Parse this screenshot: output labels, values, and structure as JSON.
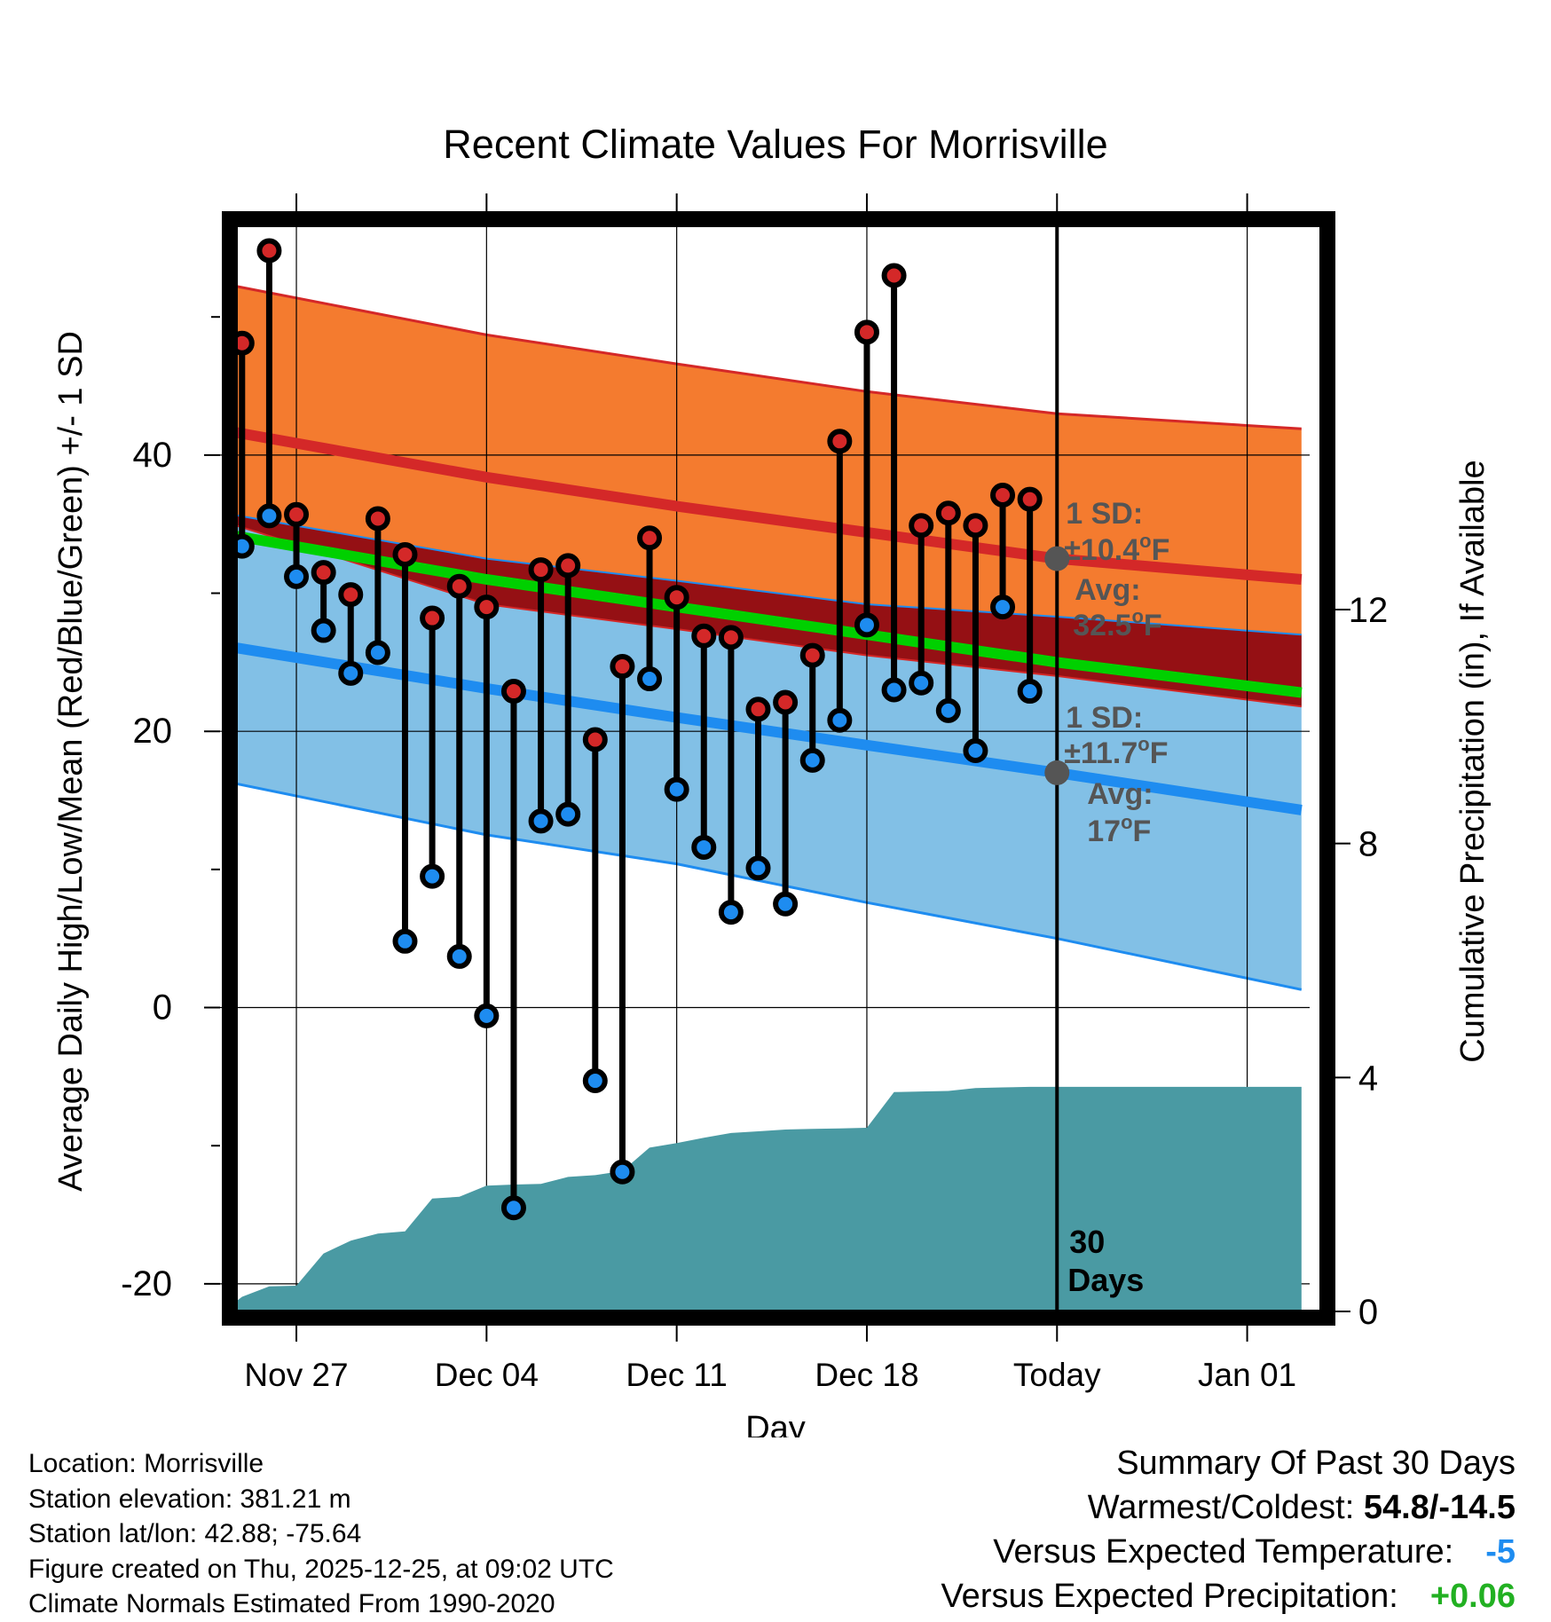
{
  "title": "Recent Climate Values For Morrisville",
  "colors": {
    "high_band": "#f47b2f",
    "high_line": "#d42828",
    "low_band": "#82c0e6",
    "low_line": "#1e8cf0",
    "overlap": "#951014",
    "mean_line": "#00d000",
    "precip": "#4a9aa3",
    "high_dot": "#d42828",
    "low_dot": "#1e8cf0",
    "annot": "#555555",
    "warm_cold_val": "#000000",
    "temp_val": "#1e8cf0",
    "precip_val": "#22b022"
  },
  "chart_data": {
    "type": "line",
    "title": "Recent Climate Values For Morrisville",
    "xlabel": "Day",
    "ylabel": "Average Daily High/Low/Mean (Red/Blue/Green) +/- 1 SD",
    "y2label": "Cumulative Precipitation (in), If Available",
    "xlim": [
      -3.3,
      37.3
    ],
    "ylim": [
      -22.0,
      57.4
    ],
    "y2lim": [
      0,
      18.75
    ],
    "x_ticks": [
      {
        "x": 0,
        "label": "Nov 27"
      },
      {
        "x": 7,
        "label": "Dec 04"
      },
      {
        "x": 14,
        "label": "Dec 11"
      },
      {
        "x": 21,
        "label": "Dec 18"
      },
      {
        "x": 28,
        "label": "Today"
      },
      {
        "x": 35,
        "label": "Jan 01"
      }
    ],
    "y_ticks": [
      -20,
      0,
      20,
      40
    ],
    "y_minor_ticks": [
      -10,
      10,
      30,
      50
    ],
    "y2_ticks": [
      0,
      4,
      8,
      12
    ],
    "today_x": 28,
    "normal_high": {
      "x": [
        -2.7,
        7,
        14,
        21,
        28,
        37
      ],
      "mean": [
        41.8,
        38.4,
        36.3,
        34.4,
        32.5,
        31.0
      ],
      "upper": [
        52.4,
        48.7,
        46.6,
        44.6,
        43.0,
        41.9
      ],
      "lower": [
        35.2,
        29.2,
        27.4,
        25.5,
        24.0,
        21.8
      ]
    },
    "normal_low": {
      "x": [
        -2.7,
        7,
        14,
        21,
        28,
        37
      ],
      "mean": [
        26.2,
        23.1,
        21.0,
        19.0,
        17.0,
        14.3
      ],
      "upper": [
        35.8,
        32.5,
        30.9,
        29.2,
        28.3,
        27.0
      ],
      "lower": [
        16.4,
        12.5,
        10.4,
        7.6,
        5.0,
        1.3
      ]
    },
    "normal_mean": {
      "x": [
        -2.7,
        7,
        14,
        21,
        28,
        37
      ],
      "values": [
        34.3,
        31.0,
        29.0,
        27.0,
        25.0,
        22.8
      ]
    },
    "series": [
      {
        "name": "High",
        "values": [
          48.1,
          54.8,
          35.7,
          31.5,
          29.9,
          35.4,
          32.8,
          28.2,
          30.5,
          29.0,
          22.9,
          31.7,
          32.0,
          19.4,
          24.7,
          34.0,
          29.7,
          26.9,
          26.8,
          21.6,
          22.1,
          25.5,
          41.0,
          48.9,
          53.0,
          34.9,
          35.8,
          34.9,
          37.1,
          36.8
        ]
      },
      {
        "name": "Low",
        "values": [
          33.4,
          35.6,
          31.2,
          27.3,
          24.2,
          25.7,
          4.8,
          9.5,
          3.7,
          -0.6,
          -14.5,
          13.5,
          14.0,
          -5.3,
          -11.9,
          23.8,
          15.8,
          11.6,
          6.9,
          10.1,
          7.5,
          17.9,
          20.8,
          27.7,
          23.0,
          23.5,
          21.5,
          18.6,
          29.0,
          22.9
        ]
      },
      {
        "name": "Cumulative Precipitation",
        "x": [
          -2.7,
          -2,
          -1,
          0,
          1,
          2,
          3,
          4,
          5,
          6,
          7,
          8,
          9,
          10,
          11,
          12,
          13,
          14,
          15,
          16,
          17,
          18,
          19,
          20,
          21,
          22,
          23,
          24,
          25,
          26,
          27,
          28,
          37
        ],
        "values": [
          0.0,
          0.25,
          0.43,
          0.44,
          0.99,
          1.21,
          1.33,
          1.37,
          1.93,
          1.96,
          2.15,
          2.17,
          2.18,
          2.3,
          2.33,
          2.4,
          2.8,
          2.88,
          2.97,
          3.05,
          3.08,
          3.11,
          3.12,
          3.13,
          3.14,
          3.75,
          3.76,
          3.77,
          3.82,
          3.83,
          3.84,
          3.84,
          3.84
        ]
      }
    ],
    "annotations": {
      "high": {
        "sd_label": "1 SD:",
        "sd_value": "±10.4",
        "avg_label": "Avg:",
        "avg_value": "32.5",
        "unit": "F",
        "degree": "o",
        "avg": 32.5
      },
      "low": {
        "sd_label": "1 SD:",
        "sd_value": "±11.7",
        "avg_label": "Avg:",
        "avg_value": "17",
        "unit": "F",
        "degree": "o",
        "avg": 17.0
      },
      "days_line1": "30",
      "days_line2": "Days"
    }
  },
  "info": {
    "location": "Location: Morrisville",
    "elevation": "Station elevation: 381.21 m",
    "latlon": "Station lat/lon: 42.88; -75.64",
    "created": "Figure created on Thu, 2025-12-25, at 09:02 UTC",
    "normals": "Climate Normals Estimated From 1990-2020"
  },
  "summary": {
    "heading": "Summary Of Past 30 Days",
    "warm_cold_label": "Warmest/Coldest: ",
    "warm_cold_value": "54.8/-14.5",
    "temp_label": "Versus Expected Temperature:",
    "temp_value": "-5",
    "precip_label": "Versus Expected Precipitation:",
    "precip_value": "+0.06"
  }
}
